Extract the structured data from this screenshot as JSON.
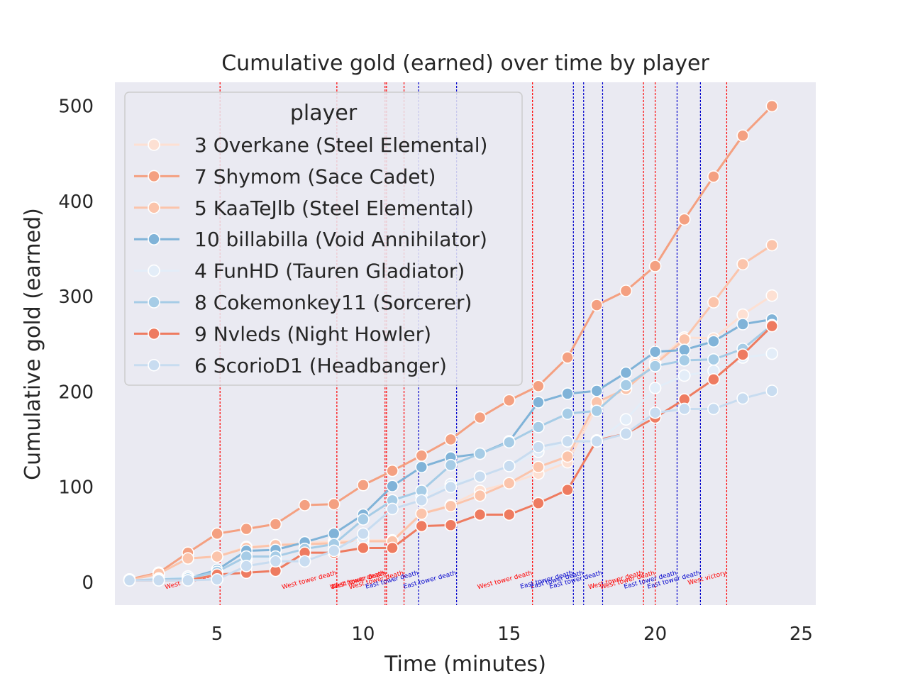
{
  "chart_data": {
    "type": "line",
    "title": "Cumulative gold (earned) over time by player",
    "xlabel": "Time (minutes)",
    "ylabel": "Cumulative gold (earned)",
    "xlim": [
      1.5,
      25.5
    ],
    "ylim": [
      -24,
      525
    ],
    "xticks": [
      5,
      10,
      15,
      20,
      25
    ],
    "yticks": [
      0,
      100,
      200,
      300,
      400,
      500
    ],
    "grid": false,
    "background": "#eaeaf2",
    "legend": {
      "title": "player",
      "placement": "upper-left"
    },
    "x": [
      2,
      3,
      4,
      5,
      6,
      7,
      8,
      9,
      10,
      11,
      12,
      13,
      14,
      15,
      16,
      17,
      18,
      19,
      20,
      21,
      22,
      23,
      24
    ],
    "series": [
      {
        "name": "3 Overkane (Steel Elemental)",
        "color": "#fde0d3",
        "values": [
          3,
          9,
          25,
          27,
          37,
          39,
          41,
          43,
          44,
          44,
          72,
          81,
          96,
          104,
          114,
          126,
          184,
          204,
          231,
          257,
          256,
          281,
          301
        ]
      },
      {
        "name": "7 Shymom (Sace Cadet)",
        "color": "#f4a081",
        "values": [
          3,
          10,
          31,
          51,
          56,
          61,
          81,
          82,
          102,
          117,
          133,
          150,
          173,
          191,
          206,
          236,
          291,
          306,
          332,
          381,
          426,
          469,
          500
        ]
      },
      {
        "name": "5 KaaTeJlb (Steel Elemental)",
        "color": "#fbc4ab",
        "values": [
          2,
          9,
          25,
          27,
          36,
          39,
          40,
          41,
          43,
          43,
          72,
          80,
          91,
          104,
          121,
          132,
          189,
          203,
          229,
          255,
          294,
          334,
          354
        ]
      },
      {
        "name": "10 billabilla (Void Annihilator)",
        "color": "#80b3d8",
        "values": [
          2,
          3,
          4,
          13,
          33,
          34,
          42,
          51,
          71,
          101,
          121,
          131,
          135,
          148,
          189,
          198,
          201,
          220,
          242,
          244,
          253,
          271,
          276
        ]
      },
      {
        "name": "4 FunHD (Tauren Gladiator)",
        "color": "#e3edf8",
        "values": [
          2,
          4,
          6,
          7,
          24,
          24,
          29,
          33,
          46,
          86,
          91,
          103,
          111,
          122,
          137,
          148,
          148,
          171,
          204,
          217,
          222,
          236,
          240
        ]
      },
      {
        "name": "8 Cokemonkey11 (Sorcerer)",
        "color": "#a6cce6",
        "values": [
          2,
          3,
          4,
          11,
          27,
          27,
          35,
          40,
          66,
          86,
          96,
          123,
          135,
          147,
          163,
          177,
          180,
          207,
          227,
          233,
          234,
          245,
          270
        ]
      },
      {
        "name": "9 Nvleds (Night Howler)",
        "color": "#ee7b60",
        "values": [
          2,
          2,
          2,
          8,
          10,
          12,
          31,
          31,
          36,
          36,
          59,
          60,
          71,
          71,
          83,
          97,
          149,
          156,
          173,
          192,
          213,
          239,
          269
        ]
      },
      {
        "name": "6 ScorioD1 (Headbanger)",
        "color": "#c8dcf0",
        "values": [
          2,
          2,
          2,
          3,
          17,
          22,
          22,
          33,
          51,
          77,
          86,
          100,
          111,
          122,
          142,
          148,
          148,
          156,
          178,
          182,
          182,
          193,
          201
        ]
      }
    ],
    "events": [
      {
        "x": 5.1,
        "label": "West tower death",
        "color": "#ff0000"
      },
      {
        "x": 9.1,
        "label": "West tower death",
        "color": "#ff0000"
      },
      {
        "x": 10.75,
        "label": "West tower death",
        "color": "#ff0000"
      },
      {
        "x": 10.8,
        "label": "West tower death",
        "color": "#ff0000"
      },
      {
        "x": 11.4,
        "label": "West tower death",
        "color": "#ff0000"
      },
      {
        "x": 11.9,
        "label": "East tower death",
        "color": "#0000cc"
      },
      {
        "x": 13.2,
        "label": "East tower death",
        "color": "#0000cc"
      },
      {
        "x": 15.8,
        "label": "West tower death",
        "color": "#ff0000"
      },
      {
        "x": 17.2,
        "label": "East tower death",
        "color": "#0000cc"
      },
      {
        "x": 17.55,
        "label": "East tower death",
        "color": "#0000cc"
      },
      {
        "x": 18.2,
        "label": "East tower death",
        "color": "#0000cc"
      },
      {
        "x": 19.6,
        "label": "West tower death",
        "color": "#ff0000"
      },
      {
        "x": 20.0,
        "label": "West tower death",
        "color": "#ff0000"
      },
      {
        "x": 20.75,
        "label": "East tower death",
        "color": "#0000cc"
      },
      {
        "x": 21.55,
        "label": "East tower death",
        "color": "#0000cc"
      },
      {
        "x": 22.45,
        "label": "West victory",
        "color": "#ff0000"
      }
    ]
  }
}
